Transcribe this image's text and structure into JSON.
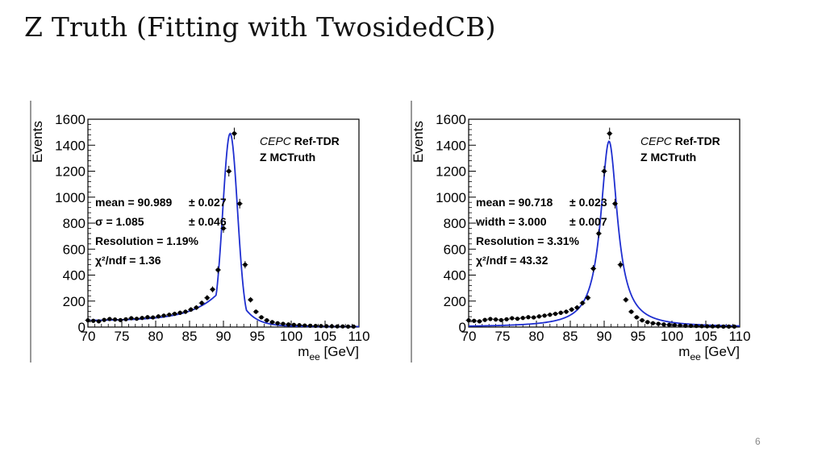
{
  "slide": {
    "title": "Z Truth (Fitting with TwosidedCB)",
    "page_number": "6"
  },
  "colors": {
    "fit_curve": "#1f2fd0",
    "data_points": "#000000",
    "frame": "#000000"
  },
  "chart_data": [
    {
      "type": "scatter",
      "ylabel": "Events",
      "xlabel_main": "m",
      "xlabel_sub": "ee",
      "xlabel_unit": " [GeV]",
      "xlim": [
        70,
        110
      ],
      "ylim": [
        0,
        1600
      ],
      "x_ticks": [
        70,
        75,
        80,
        85,
        90,
        95,
        100,
        105,
        110
      ],
      "y_ticks": [
        0,
        200,
        400,
        600,
        800,
        1000,
        1200,
        1400,
        1600
      ],
      "experiment": "CEPC",
      "tag": "Ref-TDR",
      "sample": "Z MCTruth",
      "fit_params": [
        {
          "label": "mean = 90.989",
          "error": "± 0.027"
        },
        {
          "label": "σ = 1.085",
          "error": "± 0.046"
        },
        {
          "label": "Resolution = 1.19%",
          "error": ""
        },
        {
          "label": "χ²/ndf = 1.36",
          "error": ""
        }
      ],
      "fit_curve": {
        "peak": 90.99,
        "amplitude": 1490,
        "core_sigma": 1.085,
        "left_tail_width": 4.0,
        "right_tail_width": 1.9,
        "baseline": 0,
        "left_floor": 50,
        "right_floor": 4
      },
      "points": {
        "x": [
          70,
          70.8,
          71.6,
          72.4,
          73.2,
          74,
          74.8,
          75.6,
          76.4,
          77.2,
          78,
          78.8,
          79.6,
          80.4,
          81.2,
          82,
          82.8,
          83.6,
          84.4,
          85.2,
          86,
          86.8,
          87.6,
          88.4,
          89.2,
          90,
          90.8,
          91.6,
          92.4,
          93.2,
          94,
          94.8,
          95.6,
          96.4,
          97.2,
          98,
          98.8,
          99.6,
          100.4,
          101.2,
          102,
          102.8,
          103.6,
          104.4,
          105.2,
          106,
          106.8,
          107.6,
          108.4,
          109.2
        ],
        "y": [
          52,
          48,
          44,
          55,
          62,
          58,
          54,
          60,
          68,
          64,
          70,
          76,
          74,
          82,
          88,
          95,
          102,
          110,
          118,
          135,
          150,
          185,
          225,
          290,
          440,
          760,
          1200,
          1490,
          950,
          480,
          210,
          118,
          75,
          52,
          38,
          30,
          25,
          20,
          17,
          15,
          12,
          10,
          9,
          8,
          7,
          6,
          5,
          5,
          4,
          4
        ]
      }
    },
    {
      "type": "scatter",
      "ylabel": "Events",
      "xlabel_main": "m",
      "xlabel_sub": "ee",
      "xlabel_unit": " [GeV]",
      "xlim": [
        70,
        110
      ],
      "ylim": [
        0,
        1600
      ],
      "x_ticks": [
        70,
        75,
        80,
        85,
        90,
        95,
        100,
        105,
        110
      ],
      "y_ticks": [
        0,
        200,
        400,
        600,
        800,
        1000,
        1200,
        1400,
        1600
      ],
      "experiment": "CEPC",
      "tag": "Ref-TDR",
      "sample": "Z MCTruth",
      "fit_params": [
        {
          "label": "mean = 90.718",
          "error": "± 0.023"
        },
        {
          "label": "width = 3.000",
          "error": "± 0.007"
        },
        {
          "label": "Resolution = 3.31%",
          "error": ""
        },
        {
          "label": "χ²/ndf = 43.32",
          "error": ""
        }
      ],
      "fit_curve": {
        "peak": 90.718,
        "amplitude": 1430,
        "lorentz_half_width": 1.5
      },
      "points": {
        "x": [
          70,
          70.8,
          71.6,
          72.4,
          73.2,
          74,
          74.8,
          75.6,
          76.4,
          77.2,
          78,
          78.8,
          79.6,
          80.4,
          81.2,
          82,
          82.8,
          83.6,
          84.4,
          85.2,
          86,
          86.8,
          87.6,
          88.4,
          89.2,
          90,
          90.8,
          91.6,
          92.4,
          93.2,
          94,
          94.8,
          95.6,
          96.4,
          97.2,
          98,
          98.8,
          99.6,
          100.4,
          101.2,
          102,
          102.8,
          103.6,
          104.4,
          105.2,
          106,
          106.8,
          107.6,
          108.4,
          109.2
        ],
        "y": [
          52,
          48,
          44,
          55,
          62,
          58,
          54,
          60,
          68,
          64,
          70,
          76,
          74,
          82,
          88,
          95,
          102,
          110,
          118,
          135,
          150,
          185,
          225,
          450,
          720,
          1200,
          1490,
          950,
          480,
          210,
          118,
          75,
          52,
          38,
          30,
          25,
          20,
          17,
          15,
          12,
          10,
          9,
          8,
          7,
          6,
          5,
          5,
          4,
          4,
          4
        ]
      }
    }
  ]
}
